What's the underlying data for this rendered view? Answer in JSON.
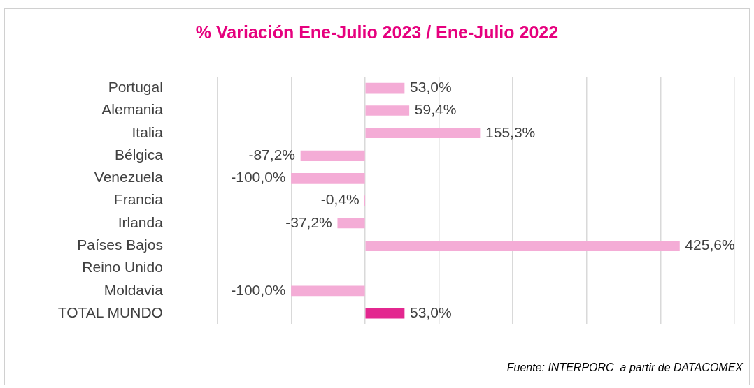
{
  "chart_data": {
    "type": "bar",
    "orientation": "horizontal",
    "title": "% Variación Ene-Julio 2023 / Ene-Julio 2022",
    "categories": [
      "Portugal",
      "Alemania",
      "Italia",
      "Bélgica",
      "Venezuela",
      "Francia",
      "Irlanda",
      "Países Bajos",
      "Reino Unido",
      "Moldavia",
      "TOTAL MUNDO"
    ],
    "values": [
      53.0,
      59.4,
      155.3,
      -87.2,
      -100.0,
      -0.4,
      -37.2,
      425.6,
      null,
      -100.0,
      53.0
    ],
    "value_labels": [
      "53,0%",
      "59,4%",
      "155,3%",
      "-87,2%",
      "-100,0%",
      "-0,4%",
      "-37,2%",
      "425,6%",
      null,
      "-100,0%",
      "53,0%"
    ],
    "colors": [
      "#f4acd6",
      "#f4acd6",
      "#f4acd6",
      "#f4acd6",
      "#f4acd6",
      "#f4acd6",
      "#f4acd6",
      "#f4acd6",
      "#f4acd6",
      "#f4acd6",
      "#e3278f"
    ],
    "xlim": [
      -200,
      500
    ],
    "xticks": [
      {
        "value": -200,
        "label": null
      },
      {
        "value": -100,
        "label": null
      },
      {
        "value": 0,
        "label": null
      },
      {
        "value": 100,
        "label": null
      },
      {
        "value": 200,
        "label": null
      },
      {
        "value": 300,
        "label": null
      },
      {
        "value": 400,
        "label": null
      },
      {
        "value": 500,
        "label": null
      }
    ],
    "grid": "x",
    "tick_labels": "y",
    "legend": false,
    "annotations": [
      "Fuente: INTERPORC  a partir de DATACOMEX"
    ]
  }
}
